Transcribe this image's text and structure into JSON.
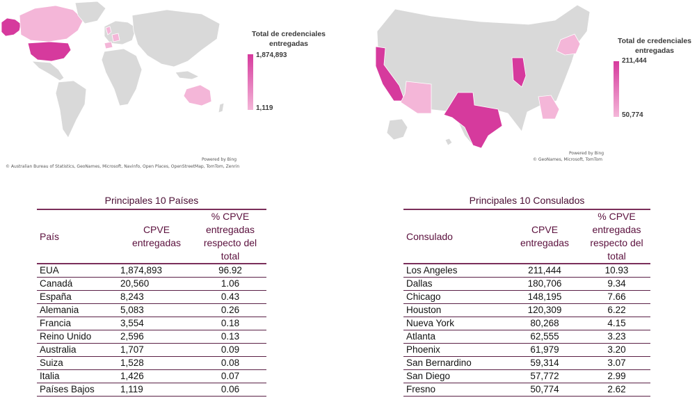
{
  "maps": {
    "world": {
      "legend_title": "Total de credenciales entregadas",
      "legend_max": "1,874,893",
      "legend_min": "1,119",
      "credit_powered": "Powered by Bing",
      "credit_sources": "© Australian Bureau of Statistics, GeoNames, Microsoft, Navinfo, Open Places, OpenStreetMap, TomTom, Zenrin",
      "colors": {
        "base": "#d9d9d9",
        "high": "#d63a9d",
        "low": "#f4b6d8"
      }
    },
    "usa": {
      "legend_title": "Total de credenciales entregadas",
      "legend_max": "211,444",
      "legend_min": "50,774",
      "credit_powered": "Powered by Bing",
      "credit_sources": "© GeoNames, Microsoft, TomTom",
      "colors": {
        "base": "#d9d9d9",
        "high": "#d63a9d",
        "low": "#f4b6d8"
      }
    }
  },
  "paises_table": {
    "title": "Principales 10 Países",
    "headers": {
      "col1": "País",
      "col2": "CPVE entregadas",
      "col3": "% CPVE entregadas respecto del total"
    },
    "rows": [
      {
        "name": "EUA",
        "cpve": "1,874,893",
        "pct": "96.92"
      },
      {
        "name": "Canadá",
        "cpve": "20,560",
        "pct": "1.06"
      },
      {
        "name": "España",
        "cpve": "8,243",
        "pct": "0.43"
      },
      {
        "name": "Alemania",
        "cpve": "5,083",
        "pct": "0.26"
      },
      {
        "name": "Francia",
        "cpve": "3,554",
        "pct": "0.18"
      },
      {
        "name": "Reino Unido",
        "cpve": "2,596",
        "pct": "0.13"
      },
      {
        "name": "Australia",
        "cpve": "1,707",
        "pct": "0.09"
      },
      {
        "name": "Suiza",
        "cpve": "1,528",
        "pct": "0.08"
      },
      {
        "name": "Italia",
        "cpve": "1,426",
        "pct": "0.07"
      },
      {
        "name": "Países Bajos",
        "cpve": "1,119",
        "pct": "0.06"
      }
    ]
  },
  "consulados_table": {
    "title": "Principales 10 Consulados",
    "headers": {
      "col1": "Consulado",
      "col2": "CPVE entregadas",
      "col3": "% CPVE entregadas respecto del total"
    },
    "rows": [
      {
        "name": "Los Angeles",
        "cpve": "211,444",
        "pct": "10.93"
      },
      {
        "name": "Dallas",
        "cpve": "180,706",
        "pct": "9.34"
      },
      {
        "name": "Chicago",
        "cpve": "148,195",
        "pct": "7.66"
      },
      {
        "name": "Houston",
        "cpve": "120,309",
        "pct": "6.22"
      },
      {
        "name": "Nueva York",
        "cpve": "80,268",
        "pct": "4.15"
      },
      {
        "name": "Atlanta",
        "cpve": "62,555",
        "pct": "3.23"
      },
      {
        "name": "Phoenix",
        "cpve": "61,979",
        "pct": "3.20"
      },
      {
        "name": "San Bernardino",
        "cpve": "59,314",
        "pct": "3.07"
      },
      {
        "name": "San Diego",
        "cpve": "57,772",
        "pct": "2.99"
      },
      {
        "name": "Fresno",
        "cpve": "50,774",
        "pct": "2.62"
      }
    ]
  }
}
